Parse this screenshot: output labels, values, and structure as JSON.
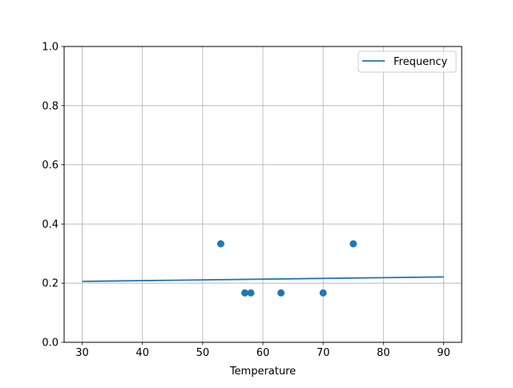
{
  "chart_data": {
    "type": "scatter+line",
    "title": "",
    "xlabel": "Temperature",
    "ylabel": "",
    "xlim": [
      27,
      93
    ],
    "ylim": [
      0,
      1
    ],
    "xticks": [
      30,
      40,
      50,
      60,
      70,
      80,
      90
    ],
    "yticks": [
      0.0,
      0.2,
      0.4,
      0.6,
      0.8,
      1.0
    ],
    "ytick_labels": [
      "0.0",
      "0.2",
      "0.4",
      "0.6",
      "0.8",
      "1.0"
    ],
    "grid": true,
    "legend": {
      "placement": "top-right",
      "entries": [
        "Frequency"
      ]
    },
    "color": "#1f77b4",
    "scatter": {
      "x": [
        53,
        57,
        58,
        63,
        70,
        75
      ],
      "y": [
        0.333,
        0.167,
        0.167,
        0.167,
        0.167,
        0.333
      ]
    },
    "line": {
      "name": "Frequency",
      "x": [
        30,
        90
      ],
      "y": [
        0.206,
        0.221
      ]
    }
  }
}
